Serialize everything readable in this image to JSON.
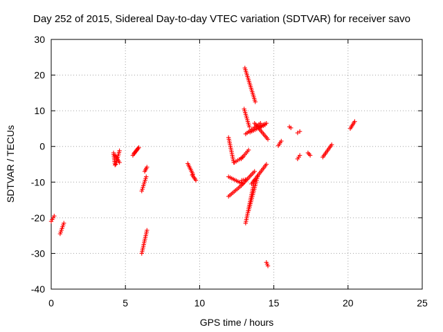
{
  "chart_data": {
    "type": "scatter",
    "title": "Day 252 of 2015, Sidereal Day-to-day VTEC variation (SDTVAR) for receiver savo",
    "xlabel": "GPS time / hours",
    "ylabel": "SDTVAR / TECUs",
    "xlim": [
      0,
      25
    ],
    "ylim": [
      -40,
      30
    ],
    "xticks": [
      0,
      5,
      10,
      15,
      20,
      25
    ],
    "yticks": [
      -40,
      -30,
      -20,
      -10,
      0,
      10,
      20,
      30
    ],
    "xtick_labels": [
      "0",
      "5",
      "10",
      "15",
      "20",
      "25"
    ],
    "ytick_labels": [
      "-40",
      "-30",
      "-20",
      "-10",
      "0",
      "10",
      "20",
      "30"
    ],
    "grid": true,
    "marker": "+",
    "color": "#ff0000",
    "segments": [
      {
        "x": [
          0.0,
          0.2
        ],
        "y": [
          -21,
          -19.5
        ]
      },
      {
        "x": [
          0.6,
          0.85
        ],
        "y": [
          -24.5,
          -21.5
        ]
      },
      {
        "x": [
          4.2,
          4.3
        ],
        "y": [
          -1.8,
          -5.2
        ]
      },
      {
        "x": [
          4.3,
          4.6
        ],
        "y": [
          -2.5,
          -4.5
        ]
      },
      {
        "x": [
          4.35,
          4.6
        ],
        "y": [
          -5.0,
          -1.2
        ]
      },
      {
        "x": [
          5.5,
          5.85
        ],
        "y": [
          -2.5,
          -0.6
        ]
      },
      {
        "x": [
          5.6,
          5.9
        ],
        "y": [
          -1.8,
          -0.3
        ]
      },
      {
        "x": [
          6.1,
          6.4
        ],
        "y": [
          -12.5,
          -8.5
        ]
      },
      {
        "x": [
          6.3,
          6.45
        ],
        "y": [
          -7.0,
          -5.8
        ]
      },
      {
        "x": [
          6.1,
          6.45
        ],
        "y": [
          -30.0,
          -23.5
        ]
      },
      {
        "x": [
          9.2,
          9.55
        ],
        "y": [
          -4.8,
          -7.8
        ]
      },
      {
        "x": [
          9.5,
          9.75
        ],
        "y": [
          -8.0,
          -9.5
        ]
      },
      {
        "x": [
          11.95,
          12.3
        ],
        "y": [
          2.5,
          -4.5
        ]
      },
      {
        "x": [
          12.35,
          12.9
        ],
        "y": [
          -4.5,
          -3.0
        ]
      },
      {
        "x": [
          11.95,
          12.9
        ],
        "y": [
          -8.5,
          -10.5
        ]
      },
      {
        "x": [
          12.85,
          13.2
        ],
        "y": [
          -9.5,
          -9.2
        ]
      },
      {
        "x": [
          11.95,
          12.8
        ],
        "y": [
          -14.0,
          -11.0
        ]
      },
      {
        "x": [
          12.8,
          13.7
        ],
        "y": [
          -11.0,
          -7.0
        ]
      },
      {
        "x": [
          12.8,
          13.3
        ],
        "y": [
          -3.5,
          -1.0
        ]
      },
      {
        "x": [
          13.1,
          13.7
        ],
        "y": [
          -21.5,
          -9.5
        ]
      },
      {
        "x": [
          13.3,
          13.9
        ],
        "y": [
          -18.0,
          -8.5
        ]
      },
      {
        "x": [
          13.5,
          14.5
        ],
        "y": [
          -10.5,
          -5.0
        ]
      },
      {
        "x": [
          13.05,
          13.75
        ],
        "y": [
          22.0,
          12.5
        ]
      },
      {
        "x": [
          13.0,
          13.35
        ],
        "y": [
          10.5,
          5.5
        ]
      },
      {
        "x": [
          13.1,
          14.1
        ],
        "y": [
          3.5,
          6.5
        ]
      },
      {
        "x": [
          13.7,
          14.6
        ],
        "y": [
          6.5,
          2.0
        ]
      },
      {
        "x": [
          13.4,
          14.4
        ],
        "y": [
          4.0,
          6.0
        ]
      },
      {
        "x": [
          14.0,
          14.5
        ],
        "y": [
          5.5,
          6.5
        ]
      },
      {
        "x": [
          14.5,
          14.6
        ],
        "y": [
          -32.5,
          -33.5
        ]
      },
      {
        "x": [
          15.3,
          15.5
        ],
        "y": [
          0.2,
          1.5
        ]
      },
      {
        "x": [
          16.05,
          16.15
        ],
        "y": [
          5.5,
          5.2
        ]
      },
      {
        "x": [
          16.6,
          16.75
        ],
        "y": [
          -3.5,
          -2.5
        ]
      },
      {
        "x": [
          16.6,
          16.75
        ],
        "y": [
          3.8,
          4.2
        ]
      },
      {
        "x": [
          17.3,
          17.45
        ],
        "y": [
          -1.8,
          -2.5
        ]
      },
      {
        "x": [
          18.3,
          18.9
        ],
        "y": [
          -3.0,
          0.5
        ]
      },
      {
        "x": [
          20.15,
          20.45
        ],
        "y": [
          5.0,
          7.0
        ]
      }
    ]
  }
}
